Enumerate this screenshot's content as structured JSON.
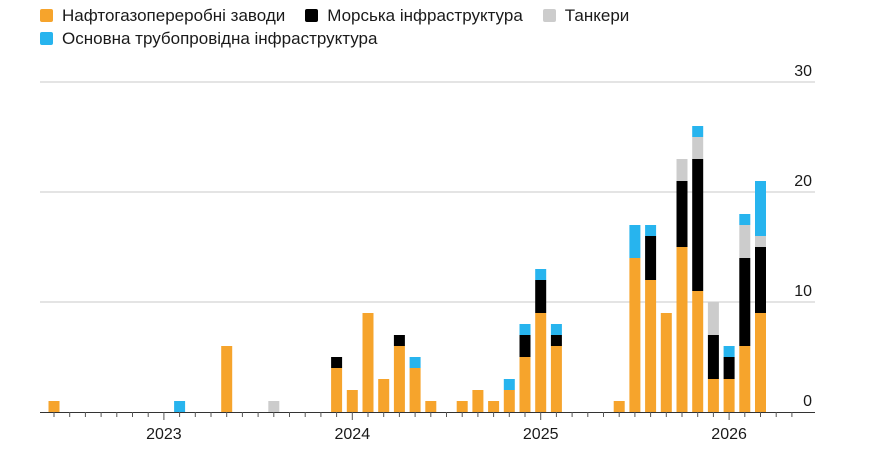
{
  "chart_data": {
    "type": "bar",
    "stacked": true,
    "title": "",
    "xlabel": "",
    "ylabel": "",
    "ylim": [
      0,
      30
    ],
    "yticks": [
      0,
      10,
      20,
      30
    ],
    "grid": true,
    "legend_placement": "top-left",
    "year_labels": [
      "2023",
      "2024",
      "2025",
      "2026"
    ],
    "categories": [
      "2022-06",
      "2022-07",
      "2022-08",
      "2022-09",
      "2022-10",
      "2022-11",
      "2022-12",
      "2023-01",
      "2023-02",
      "2023-03",
      "2023-04",
      "2023-05",
      "2023-06",
      "2023-07",
      "2023-08",
      "2023-09",
      "2023-10",
      "2023-11",
      "2023-12",
      "2024-01",
      "2024-02",
      "2024-03",
      "2024-04",
      "2024-05",
      "2024-06",
      "2024-07",
      "2024-08",
      "2024-09",
      "2024-10",
      "2024-11",
      "2024-12",
      "2025-01",
      "2025-02",
      "2025-03",
      "2025-04",
      "2025-05",
      "2025-06",
      "2025-07",
      "2025-08",
      "2025-09",
      "2025-10",
      "2025-11",
      "2025-12",
      "2026-01",
      "2026-02",
      "2026-03",
      "2026-04",
      "2026-05"
    ],
    "series": [
      {
        "name": "Нафтогазопереробні заводи",
        "color": "#f6a42c",
        "values": [
          1,
          0,
          0,
          0,
          0,
          0,
          0,
          0,
          0,
          0,
          0,
          6,
          0,
          0,
          0,
          0,
          0,
          0,
          4,
          2,
          9,
          3,
          6,
          4,
          1,
          0,
          1,
          2,
          1,
          2,
          5,
          9,
          6,
          0,
          0,
          0,
          1,
          14,
          12,
          9,
          15,
          11,
          3,
          3,
          6,
          9,
          0,
          0
        ]
      },
      {
        "name": "Морська інфраструктура",
        "color": "#000000",
        "values": [
          0,
          0,
          0,
          0,
          0,
          0,
          0,
          0,
          0,
          0,
          0,
          0,
          0,
          0,
          0,
          0,
          0,
          0,
          1,
          0,
          0,
          0,
          1,
          0,
          0,
          0,
          0,
          0,
          0,
          0,
          2,
          3,
          1,
          0,
          0,
          0,
          0,
          0,
          4,
          0,
          6,
          12,
          4,
          2,
          8,
          6,
          0,
          0
        ]
      },
      {
        "name": "Танкери",
        "color": "#cccccc",
        "values": [
          0,
          0,
          0,
          0,
          0,
          0,
          0,
          0,
          0,
          0,
          0,
          0,
          0,
          0,
          1,
          0,
          0,
          0,
          0,
          0,
          0,
          0,
          0,
          0,
          0,
          0,
          0,
          0,
          0,
          0,
          0,
          0,
          0,
          0,
          0,
          0,
          0,
          0,
          0,
          0,
          2,
          2,
          3,
          0,
          3,
          1,
          0,
          0
        ]
      },
      {
        "name": "Основна трубопровідна інфраструктура",
        "color": "#27b4ee",
        "values": [
          0,
          0,
          0,
          0,
          0,
          0,
          0,
          0,
          1,
          0,
          0,
          0,
          0,
          0,
          0,
          0,
          0,
          0,
          0,
          0,
          0,
          0,
          0,
          1,
          0,
          0,
          0,
          0,
          0,
          1,
          1,
          1,
          1,
          0,
          0,
          0,
          0,
          3,
          1,
          0,
          0,
          1,
          0,
          1,
          1,
          5,
          0,
          0
        ]
      }
    ]
  }
}
